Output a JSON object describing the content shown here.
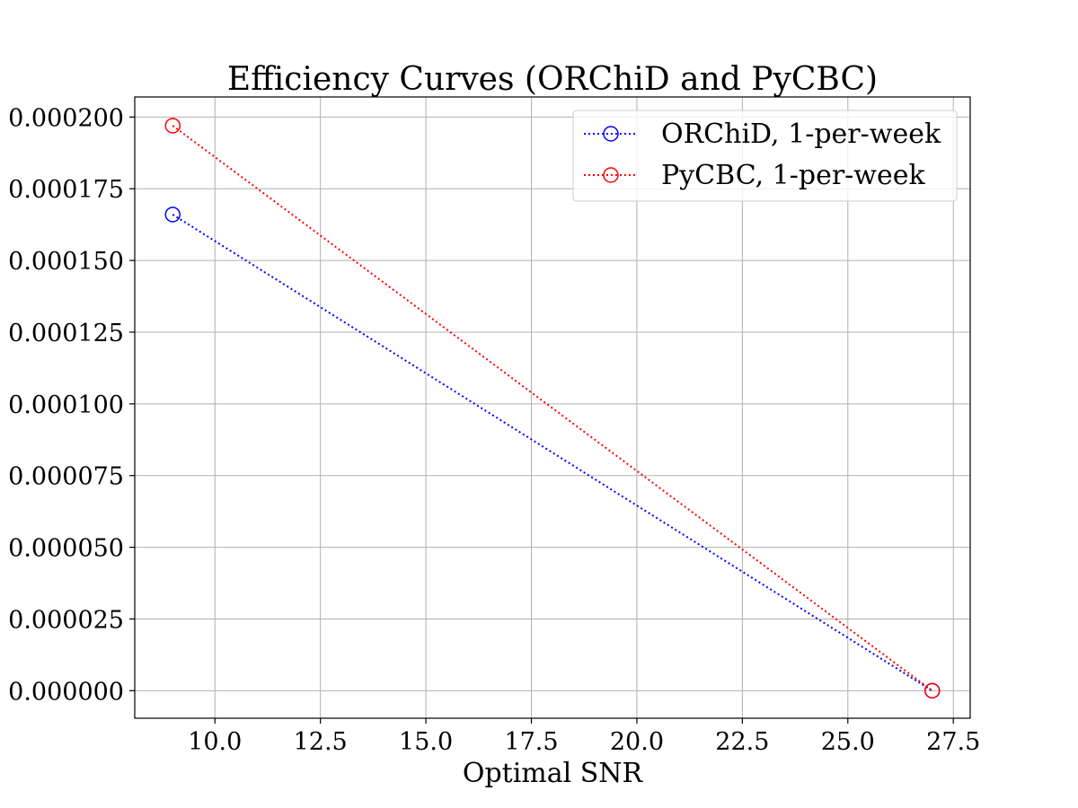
{
  "chart_data": {
    "type": "line",
    "title": "Efficiency Curves (ORChiD and PyCBC)",
    "xlabel": "Optimal SNR",
    "ylabel": "",
    "xlim": [
      8.1,
      27.9
    ],
    "ylim": [
      -9.6e-06,
      0.000207
    ],
    "xticks": [
      10.0,
      12.5,
      15.0,
      17.5,
      20.0,
      22.5,
      25.0,
      27.5
    ],
    "xtick_labels": [
      "10.0",
      "12.5",
      "15.0",
      "17.5",
      "20.0",
      "22.5",
      "25.0",
      "27.5"
    ],
    "yticks": [
      0.0,
      2.5e-05,
      5e-05,
      7.5e-05,
      0.0001,
      0.000125,
      0.00015,
      0.000175,
      0.0002
    ],
    "ytick_labels": [
      "0.000000",
      "0.000025",
      "0.000050",
      "0.000075",
      "0.000100",
      "0.000125",
      "0.000150",
      "0.000175",
      "0.000200"
    ],
    "grid": true,
    "legend_position": "top-right",
    "series": [
      {
        "name": "ORChiD, 1-per-week",
        "color": "#0000ff",
        "linestyle": "dotted",
        "marker": "open-circle",
        "x": [
          9.0,
          27.0
        ],
        "y": [
          0.000166,
          0.0
        ]
      },
      {
        "name": "PyCBC, 1-per-week",
        "color": "#ff0000",
        "linestyle": "dotted",
        "marker": "open-circle",
        "x": [
          9.0,
          27.0
        ],
        "y": [
          0.000197,
          0.0
        ]
      }
    ]
  }
}
